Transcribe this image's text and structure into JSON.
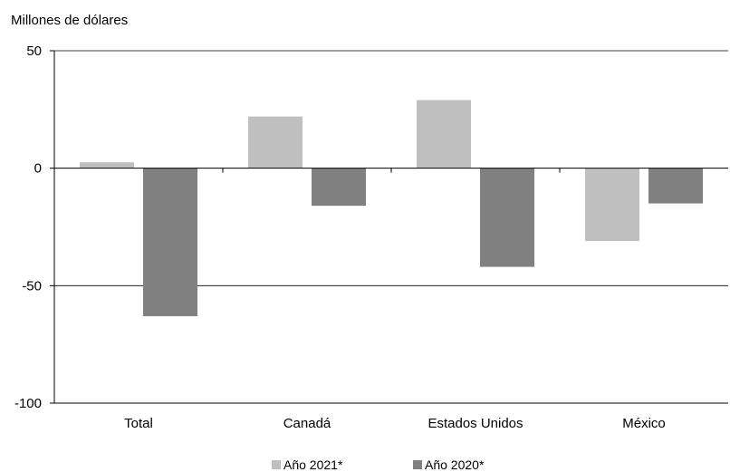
{
  "chart_data": {
    "type": "bar",
    "ylabel": "Millones de dólares",
    "categories": [
      "Total",
      "Canadá",
      "Estados Unidos",
      "México"
    ],
    "series": [
      {
        "name": "Año 2021*",
        "values": [
          2.5,
          22,
          29,
          -31
        ],
        "color": "#bfbfbf"
      },
      {
        "name": "Año 2020*",
        "values": [
          -63,
          -16,
          -42,
          -15
        ],
        "color": "#808080"
      }
    ],
    "ylim": [
      -100,
      50
    ],
    "yticks": [
      50,
      0,
      -50,
      -100
    ],
    "gridlines": [
      50,
      -50
    ],
    "grid": true,
    "legend_position": "bottom-center"
  }
}
